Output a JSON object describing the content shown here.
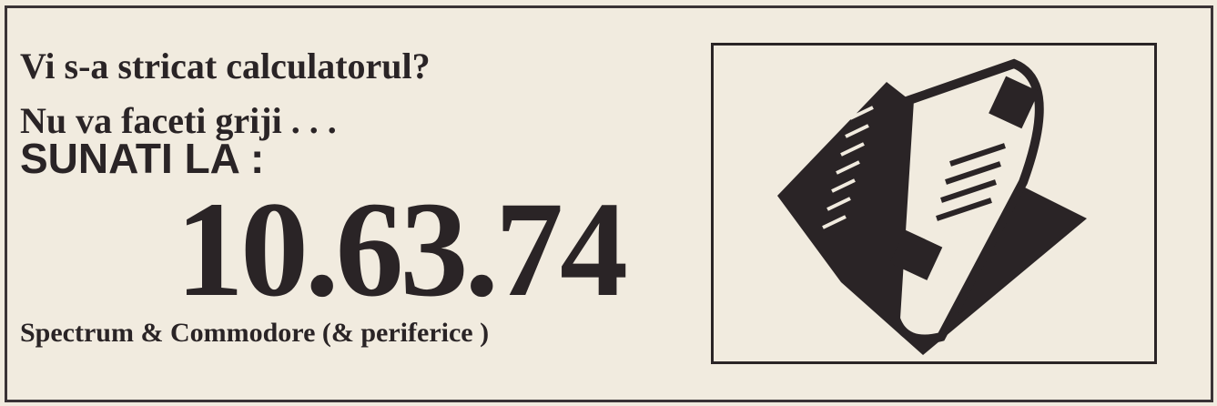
{
  "ad": {
    "line1": "Vi s-a stricat calculatorul?",
    "line2": "Nu va faceti griji . . .",
    "line3": "SUNATI LA :",
    "phone": "10.63.74",
    "footer": "Spectrum & Commodore (& periferice )"
  }
}
